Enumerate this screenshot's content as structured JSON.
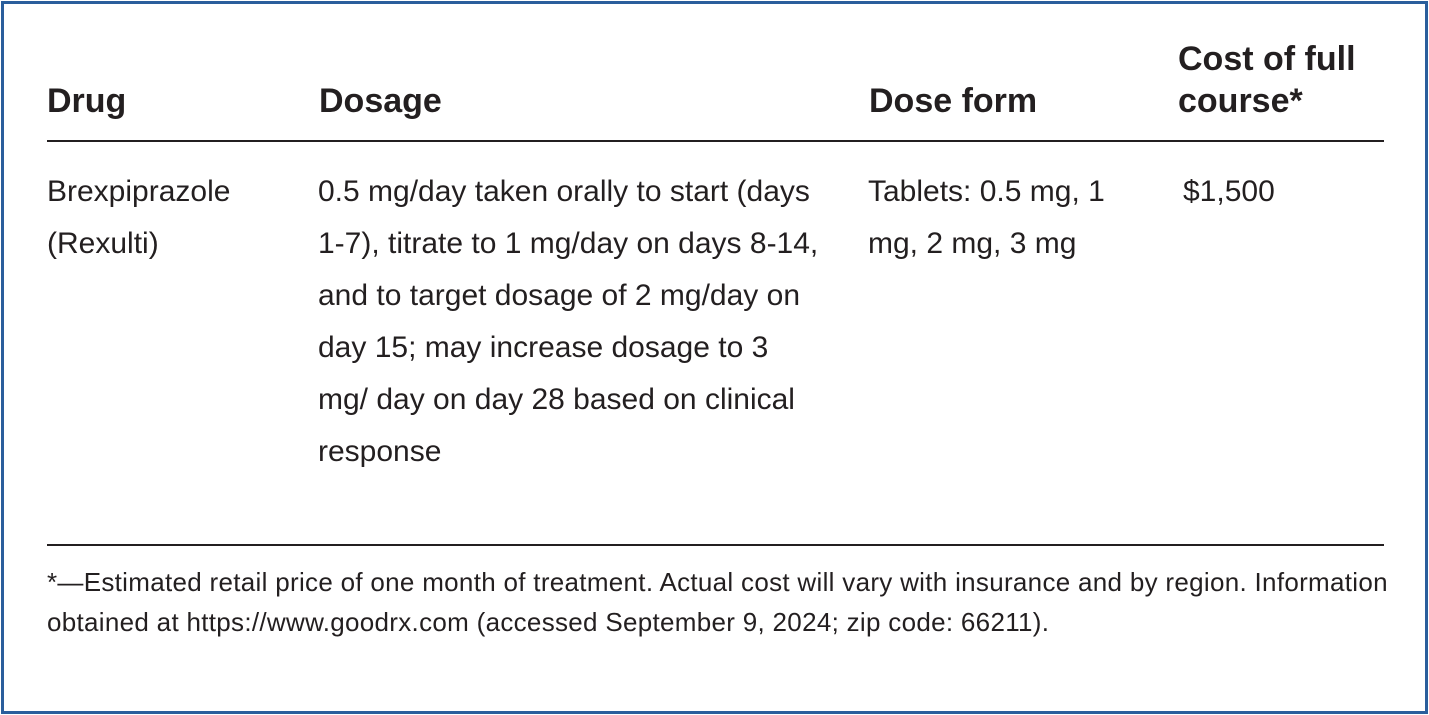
{
  "table": {
    "header": [
      "Drug",
      "Dosage",
      "Dose form",
      "Cost of full course*"
    ],
    "rows": [
      [
        "Brexpiprazole (Rexulti)",
        "0.5 mg/day taken orally to start (days 1-7), titrate to 1 mg/day on days 8-14, and to target dosage of 2 mg/day on day 15; may increase dosage to 3 mg/ day on day 28 based on clinical response",
        "Tablets: 0.5 mg, 1 mg, 2 mg, 3 mg",
        "$1,500"
      ]
    ],
    "footnote": "*—Estimated retail price of one month of treatment. Actual cost will vary with insurance and by region. Information obtained at https://www.goodrx.com (accessed September 9, 2024; zip code: 66211)."
  }
}
